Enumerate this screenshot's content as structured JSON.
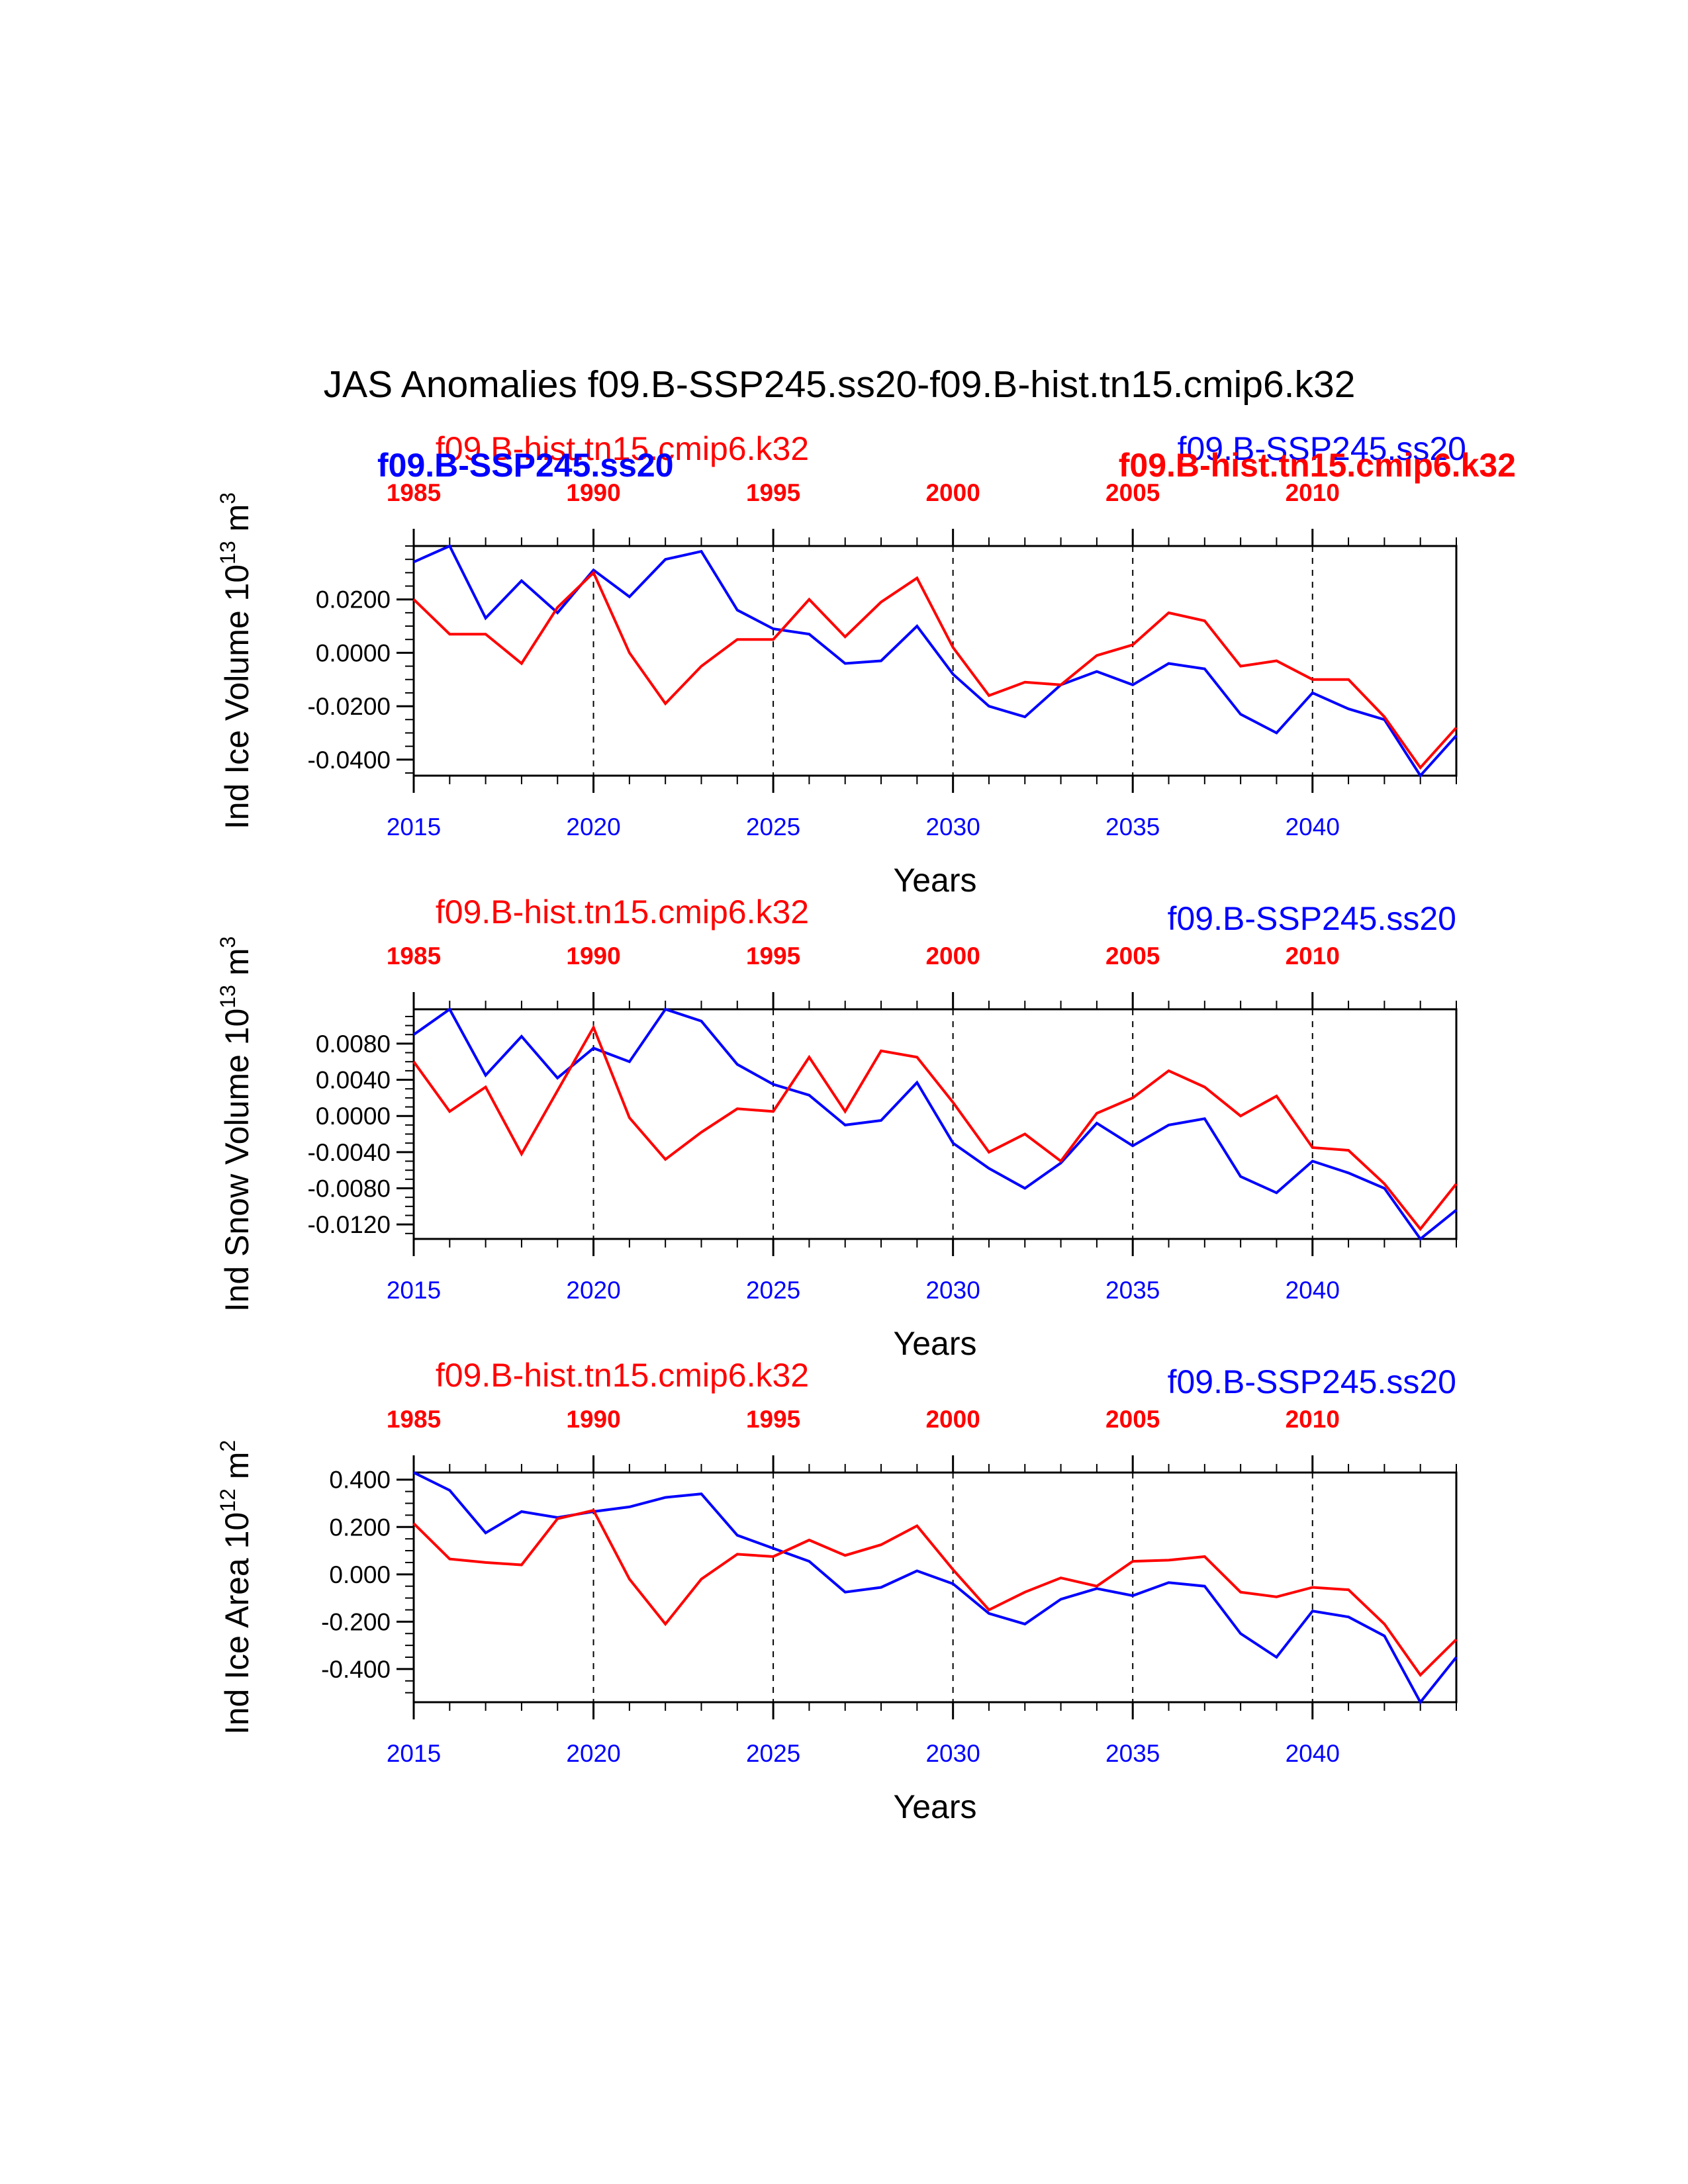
{
  "title": "JAS Anomalies f09.B-SSP245.ss20-f09.B-hist.tn15.cmip6.k32",
  "legend_overlap": {
    "red_top": "f09.B-hist.tn15.cmip6.k32",
    "blue_bold": "f09.B-SSP245.ss20",
    "blue_top": "f09.B-SSP245.ss20",
    "red_bold": "f09.B-hist.tn15.cmip6.k32"
  },
  "colors": {
    "ssp245": "#0000ff",
    "hist": "#ff0000",
    "axis": "#000000"
  },
  "chart_data": [
    {
      "type": "line",
      "ylabel": "Ind Ice Volume 10",
      "ylabel_exp": "13",
      "ylabel_unit": "m",
      "ylabel_unit_exp": "3",
      "xlabel": "Years",
      "top_label_hist": "f09.B-hist.tn15.cmip6.k32",
      "top_label_ssp": "f09.B-SSP245.ss20",
      "bottom_ticks": [
        "2015",
        "2020",
        "2025",
        "2030",
        "2035",
        "2040"
      ],
      "top_ticks": [
        "1985",
        "1990",
        "1995",
        "2000",
        "2005",
        "2010"
      ],
      "xlim": [
        2015,
        2044
      ],
      "top_xlim": [
        1985,
        2014
      ],
      "ylim": [
        -0.046,
        0.04
      ],
      "yticks": [
        0.02,
        0.0,
        -0.02,
        -0.04
      ],
      "ytick_labels": [
        "0.0200",
        "0.0000",
        "-0.0200",
        "-0.0400"
      ],
      "yminor_step": 0.005,
      "series": [
        {
          "name": "f09.B-SSP245.ss20",
          "color": "#0000ff",
          "axis": "bottom",
          "x": [
            2015,
            2016,
            2017,
            2018,
            2019,
            2020,
            2021,
            2022,
            2023,
            2024,
            2025,
            2026,
            2027,
            2028,
            2029,
            2030,
            2031,
            2032,
            2033,
            2034,
            2035,
            2036,
            2037,
            2038,
            2039,
            2040,
            2041,
            2042,
            2043,
            2044
          ],
          "values": [
            0.034,
            0.04,
            0.013,
            0.027,
            0.015,
            0.031,
            0.021,
            0.035,
            0.038,
            0.016,
            0.009,
            0.007,
            -0.004,
            -0.003,
            0.01,
            -0.008,
            -0.02,
            -0.024,
            -0.012,
            -0.007,
            -0.012,
            -0.004,
            -0.006,
            -0.023,
            -0.03,
            -0.015,
            -0.021,
            -0.025,
            -0.046,
            -0.031
          ]
        },
        {
          "name": "f09.B-hist.tn15.cmip6.k32",
          "color": "#ff0000",
          "axis": "top",
          "x": [
            1985,
            1986,
            1987,
            1988,
            1989,
            1990,
            1991,
            1992,
            1993,
            1994,
            1995,
            1996,
            1997,
            1998,
            1999,
            2000,
            2001,
            2002,
            2003,
            2004,
            2005,
            2006,
            2007,
            2008,
            2009,
            2010,
            2011,
            2012,
            2013,
            2014
          ],
          "values": [
            0.02,
            0.007,
            0.007,
            -0.004,
            0.017,
            0.03,
            0.0,
            -0.019,
            -0.005,
            0.005,
            0.005,
            0.02,
            0.006,
            0.019,
            0.028,
            0.002,
            -0.016,
            -0.011,
            -0.012,
            -0.001,
            0.003,
            0.015,
            0.012,
            -0.005,
            -0.003,
            -0.01,
            -0.01,
            -0.024,
            -0.043,
            -0.028
          ]
        }
      ]
    },
    {
      "type": "line",
      "ylabel": "Ind Snow Volume 10",
      "ylabel_exp": "13",
      "ylabel_unit": "m",
      "ylabel_unit_exp": "3",
      "xlabel": "Years",
      "top_label_hist": "f09.B-hist.tn15.cmip6.k32",
      "top_label_ssp": "f09.B-SSP245.ss20",
      "bottom_ticks": [
        "2015",
        "2020",
        "2025",
        "2030",
        "2035",
        "2040"
      ],
      "top_ticks": [
        "1985",
        "1990",
        "1995",
        "2000",
        "2005",
        "2010"
      ],
      "xlim": [
        2015,
        2044
      ],
      "top_xlim": [
        1985,
        2014
      ],
      "ylim": [
        -0.0136,
        0.0118
      ],
      "yticks": [
        0.008,
        0.004,
        0.0,
        -0.004,
        -0.008,
        -0.012
      ],
      "ytick_labels": [
        "0.0080",
        "0.0040",
        "0.0000",
        "-0.0040",
        "-0.0080",
        "-0.0120"
      ],
      "yminor_step": 0.001,
      "series": [
        {
          "name": "f09.B-SSP245.ss20",
          "color": "#0000ff",
          "axis": "bottom",
          "x": [
            2015,
            2016,
            2017,
            2018,
            2019,
            2020,
            2021,
            2022,
            2023,
            2024,
            2025,
            2026,
            2027,
            2028,
            2029,
            2030,
            2031,
            2032,
            2033,
            2034,
            2035,
            2036,
            2037,
            2038,
            2039,
            2040,
            2041,
            2042,
            2043,
            2044
          ],
          "values": [
            0.009,
            0.0118,
            0.0045,
            0.0088,
            0.0042,
            0.0075,
            0.006,
            0.0118,
            0.0105,
            0.0057,
            0.0035,
            0.0023,
            -0.001,
            -0.0005,
            0.0037,
            -0.003,
            -0.0058,
            -0.008,
            -0.0052,
            -0.0008,
            -0.0033,
            -0.001,
            -0.0003,
            -0.0067,
            -0.0085,
            -0.005,
            -0.0063,
            -0.008,
            -0.0136,
            -0.0104
          ]
        },
        {
          "name": "f09.B-hist.tn15.cmip6.k32",
          "color": "#ff0000",
          "axis": "top",
          "x": [
            1985,
            1986,
            1987,
            1988,
            1989,
            1990,
            1991,
            1992,
            1993,
            1994,
            1995,
            1996,
            1997,
            1998,
            1999,
            2000,
            2001,
            2002,
            2003,
            2004,
            2005,
            2006,
            2007,
            2008,
            2009,
            2010,
            2011,
            2012,
            2013,
            2014
          ],
          "values": [
            0.006,
            0.0005,
            0.0032,
            -0.0042,
            0.0028,
            0.0098,
            -0.0002,
            -0.0048,
            -0.0018,
            0.0008,
            0.0005,
            0.0065,
            0.0005,
            0.0072,
            0.0065,
            0.0015,
            -0.004,
            -0.002,
            -0.005,
            0.0003,
            0.002,
            0.005,
            0.0032,
            0.0,
            0.0022,
            -0.0035,
            -0.0038,
            -0.0075,
            -0.0125,
            -0.0075
          ]
        }
      ]
    },
    {
      "type": "line",
      "ylabel": "Ind Ice Area 10",
      "ylabel_exp": "12",
      "ylabel_unit": "m",
      "ylabel_unit_exp": "2",
      "xlabel": "Years",
      "top_label_hist": "f09.B-hist.tn15.cmip6.k32",
      "top_label_ssp": "f09.B-SSP245.ss20",
      "bottom_ticks": [
        "2015",
        "2020",
        "2025",
        "2030",
        "2035",
        "2040"
      ],
      "top_ticks": [
        "1985",
        "1990",
        "1995",
        "2000",
        "2005",
        "2010"
      ],
      "xlim": [
        2015,
        2044
      ],
      "top_xlim": [
        1985,
        2014
      ],
      "ylim": [
        -0.54,
        0.43
      ],
      "yticks": [
        0.4,
        0.2,
        0.0,
        -0.2,
        -0.4
      ],
      "ytick_labels": [
        "0.400",
        "0.200",
        "0.000",
        "-0.200",
        "-0.400"
      ],
      "yminor_step": 0.05,
      "series": [
        {
          "name": "f09.B-SSP245.ss20",
          "color": "#0000ff",
          "axis": "bottom",
          "x": [
            2015,
            2016,
            2017,
            2018,
            2019,
            2020,
            2021,
            2022,
            2023,
            2024,
            2025,
            2026,
            2027,
            2028,
            2029,
            2030,
            2031,
            2032,
            2033,
            2034,
            2035,
            2036,
            2037,
            2038,
            2039,
            2040,
            2041,
            2042,
            2043,
            2044
          ],
          "values": [
            0.43,
            0.355,
            0.175,
            0.265,
            0.24,
            0.265,
            0.285,
            0.325,
            0.34,
            0.165,
            0.11,
            0.055,
            -0.075,
            -0.055,
            0.015,
            -0.04,
            -0.165,
            -0.21,
            -0.105,
            -0.06,
            -0.09,
            -0.035,
            -0.05,
            -0.25,
            -0.35,
            -0.155,
            -0.18,
            -0.26,
            -0.54,
            -0.35
          ]
        },
        {
          "name": "f09.B-hist.tn15.cmip6.k32",
          "color": "#ff0000",
          "axis": "top",
          "x": [
            1985,
            1986,
            1987,
            1988,
            1989,
            1990,
            1991,
            1992,
            1993,
            1994,
            1995,
            1996,
            1997,
            1998,
            1999,
            2000,
            2001,
            2002,
            2003,
            2004,
            2005,
            2006,
            2007,
            2008,
            2009,
            2010,
            2011,
            2012,
            2013,
            2014
          ],
          "values": [
            0.215,
            0.065,
            0.05,
            0.04,
            0.235,
            0.27,
            -0.02,
            -0.21,
            -0.02,
            0.085,
            0.075,
            0.145,
            0.08,
            0.125,
            0.205,
            0.02,
            -0.15,
            -0.075,
            -0.015,
            -0.05,
            0.055,
            0.06,
            0.075,
            -0.075,
            -0.095,
            -0.055,
            -0.065,
            -0.21,
            -0.425,
            -0.275
          ]
        }
      ]
    }
  ]
}
